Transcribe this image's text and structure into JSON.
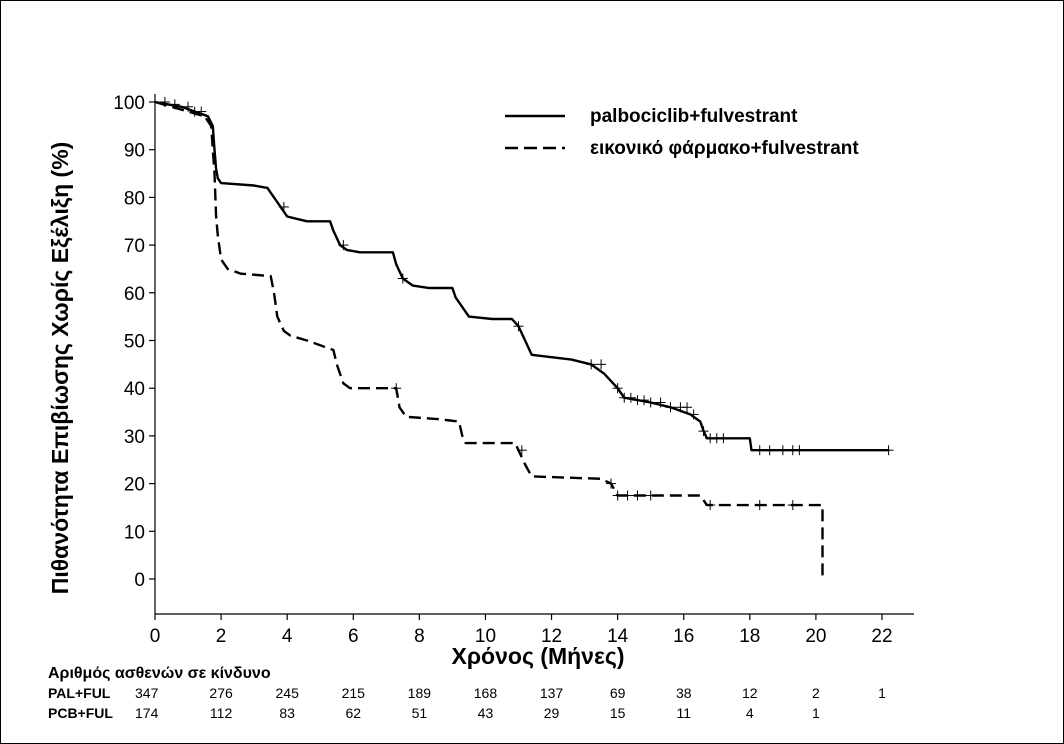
{
  "chart_data": {
    "type": "line",
    "title": "",
    "xlabel": "Χρόνος (Μήνες)",
    "ylabel": "Πιθανότητα Επιβίωσης Χωρίς Εξέλιξη (%)",
    "xlim": [
      0,
      23
    ],
    "ylim": [
      -4,
      103
    ],
    "xticks": [
      0,
      2,
      4,
      6,
      8,
      10,
      12,
      14,
      16,
      18,
      20,
      22
    ],
    "yticks": [
      0,
      10,
      20,
      30,
      40,
      50,
      60,
      70,
      80,
      90,
      100
    ],
    "grid": false,
    "legend_position": "top-right",
    "series": [
      {
        "name": "palbociclib+fulvestrant",
        "style": "solid",
        "points": [
          [
            0,
            100
          ],
          [
            0.4,
            99.5
          ],
          [
            0.8,
            99
          ],
          [
            1.2,
            98
          ],
          [
            1.6,
            97
          ],
          [
            1.75,
            95
          ],
          [
            1.8,
            90
          ],
          [
            1.85,
            86
          ],
          [
            1.9,
            84
          ],
          [
            2.0,
            83
          ],
          [
            3.0,
            82.5
          ],
          [
            3.4,
            82
          ],
          [
            3.6,
            80
          ],
          [
            3.8,
            78
          ],
          [
            4.0,
            76
          ],
          [
            4.3,
            75.5
          ],
          [
            4.6,
            75
          ],
          [
            5.3,
            75
          ],
          [
            5.4,
            73
          ],
          [
            5.6,
            70
          ],
          [
            5.8,
            69
          ],
          [
            6.2,
            68.5
          ],
          [
            7.2,
            68.5
          ],
          [
            7.3,
            66
          ],
          [
            7.5,
            63
          ],
          [
            7.8,
            61.5
          ],
          [
            8.3,
            61
          ],
          [
            9.0,
            61
          ],
          [
            9.1,
            59
          ],
          [
            9.3,
            57
          ],
          [
            9.5,
            55
          ],
          [
            10.2,
            54.5
          ],
          [
            10.8,
            54.5
          ],
          [
            11.0,
            53
          ],
          [
            11.2,
            50
          ],
          [
            11.4,
            47
          ],
          [
            12.0,
            46.5
          ],
          [
            12.6,
            46
          ],
          [
            13.2,
            45
          ],
          [
            13.6,
            43
          ],
          [
            14.0,
            40
          ],
          [
            14.2,
            38
          ],
          [
            14.6,
            37.5
          ],
          [
            15.0,
            37
          ],
          [
            15.6,
            36
          ],
          [
            16.2,
            34.5
          ],
          [
            16.5,
            33
          ],
          [
            16.6,
            31
          ],
          [
            16.7,
            29.5
          ],
          [
            18.0,
            29.5
          ],
          [
            18.05,
            27
          ],
          [
            22.2,
            27
          ]
        ],
        "censor_marks": [
          0.3,
          0.6,
          1.0,
          1.4,
          3.9,
          5.7,
          7.5,
          11.0,
          13.2,
          13.5,
          14.0,
          14.2,
          14.4,
          14.6,
          14.8,
          15.0,
          15.3,
          15.6,
          15.9,
          16.1,
          16.3,
          16.6,
          16.8,
          17.0,
          17.2,
          18.3,
          18.6,
          19.0,
          19.3,
          19.5,
          22.2
        ]
      },
      {
        "name": "εικονικό φάρμακο+fulvestrant",
        "style": "dashed",
        "points": [
          [
            0,
            100
          ],
          [
            0.5,
            99
          ],
          [
            1.0,
            98
          ],
          [
            1.5,
            97
          ],
          [
            1.7,
            95
          ],
          [
            1.8,
            85
          ],
          [
            1.85,
            76
          ],
          [
            1.9,
            72
          ],
          [
            2.0,
            67
          ],
          [
            2.2,
            65
          ],
          [
            2.6,
            64
          ],
          [
            3.5,
            63.5
          ],
          [
            3.6,
            60
          ],
          [
            3.7,
            55
          ],
          [
            3.9,
            52
          ],
          [
            4.1,
            51
          ],
          [
            4.6,
            50
          ],
          [
            5.4,
            48
          ],
          [
            5.5,
            45
          ],
          [
            5.7,
            41
          ],
          [
            5.9,
            40
          ],
          [
            6.5,
            40
          ],
          [
            7.3,
            40
          ],
          [
            7.4,
            36
          ],
          [
            7.6,
            34
          ],
          [
            8.6,
            33.5
          ],
          [
            9.2,
            33
          ],
          [
            9.3,
            30
          ],
          [
            9.4,
            28.5
          ],
          [
            10.9,
            28.5
          ],
          [
            11.0,
            27
          ],
          [
            11.2,
            24
          ],
          [
            11.4,
            21.5
          ],
          [
            13.5,
            21
          ],
          [
            13.8,
            20
          ],
          [
            14.0,
            17.5
          ],
          [
            16.5,
            17.5
          ],
          [
            16.7,
            15.5
          ],
          [
            20.1,
            15.5
          ],
          [
            20.2,
            15.5
          ],
          [
            20.2,
            0
          ]
        ],
        "censor_marks": [
          1.2,
          7.3,
          11.1,
          13.8,
          14.0,
          14.3,
          14.6,
          15.0,
          16.8,
          18.3,
          19.3
        ]
      }
    ]
  },
  "risk_table": {
    "title": "Αριθμός ασθενών σε κίνδυνο",
    "times": [
      0,
      2,
      4,
      6,
      8,
      10,
      12,
      14,
      16,
      18,
      20,
      22
    ],
    "rows": [
      {
        "label": "PAL+FUL",
        "values": [
          "347",
          "276",
          "245",
          "215",
          "189",
          "168",
          "137",
          "69",
          "38",
          "12",
          "2",
          "1"
        ]
      },
      {
        "label": "PCB+FUL",
        "values": [
          "174",
          "112",
          "83",
          "62",
          "51",
          "43",
          "29",
          "15",
          "11",
          "4",
          "1"
        ]
      }
    ]
  }
}
